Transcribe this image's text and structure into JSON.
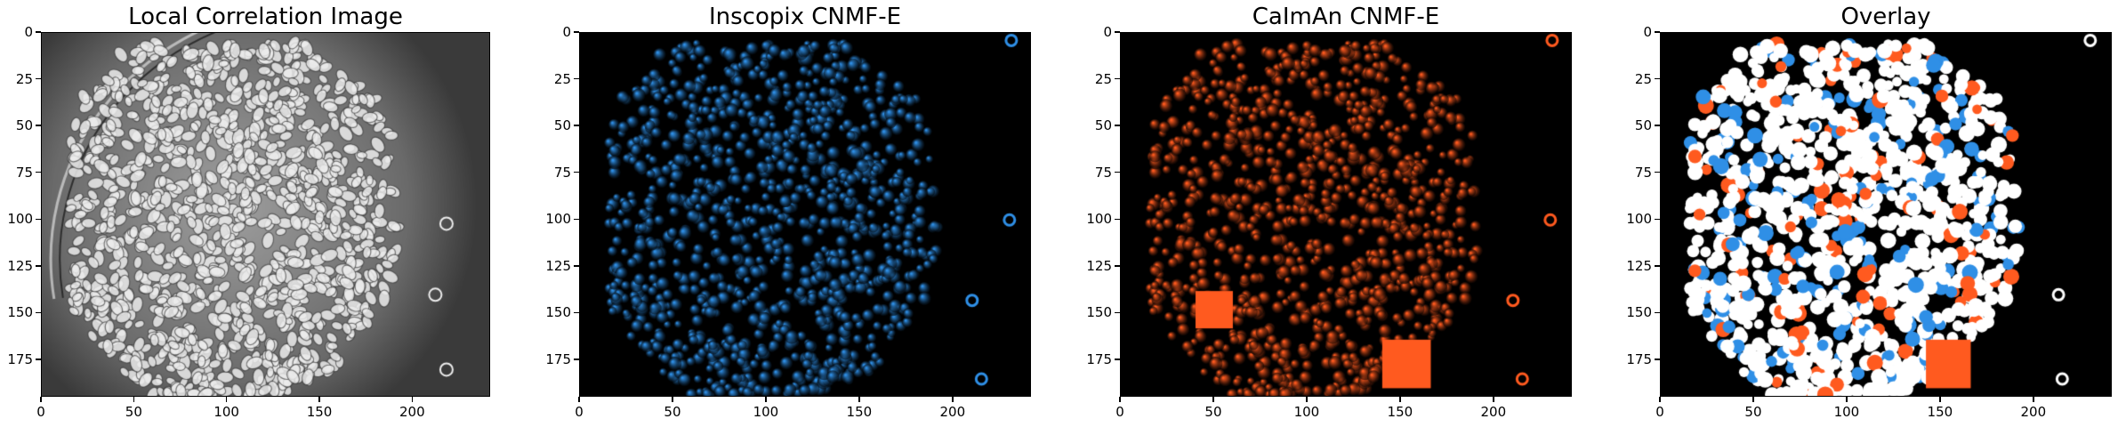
{
  "panels": [
    {
      "title": "Local Correlation Image",
      "kind": "correlation"
    },
    {
      "title": "Inscopix CNMF-E",
      "kind": "inscopix"
    },
    {
      "title": "CaImAn CNMF-E",
      "kind": "caiman"
    },
    {
      "title": "Overlay",
      "kind": "overlay"
    }
  ],
  "axes": {
    "x_ticks": [
      0,
      50,
      100,
      150,
      200
    ],
    "y_ticks": [
      0,
      25,
      50,
      75,
      100,
      125,
      150,
      175
    ],
    "x_range": [
      0,
      242
    ],
    "y_range": [
      0,
      195
    ]
  },
  "colors": {
    "inscopix": "#2f8fe6",
    "caiman": "#ff5a1f",
    "overlap": "#ffffff",
    "background": "#000000"
  }
}
